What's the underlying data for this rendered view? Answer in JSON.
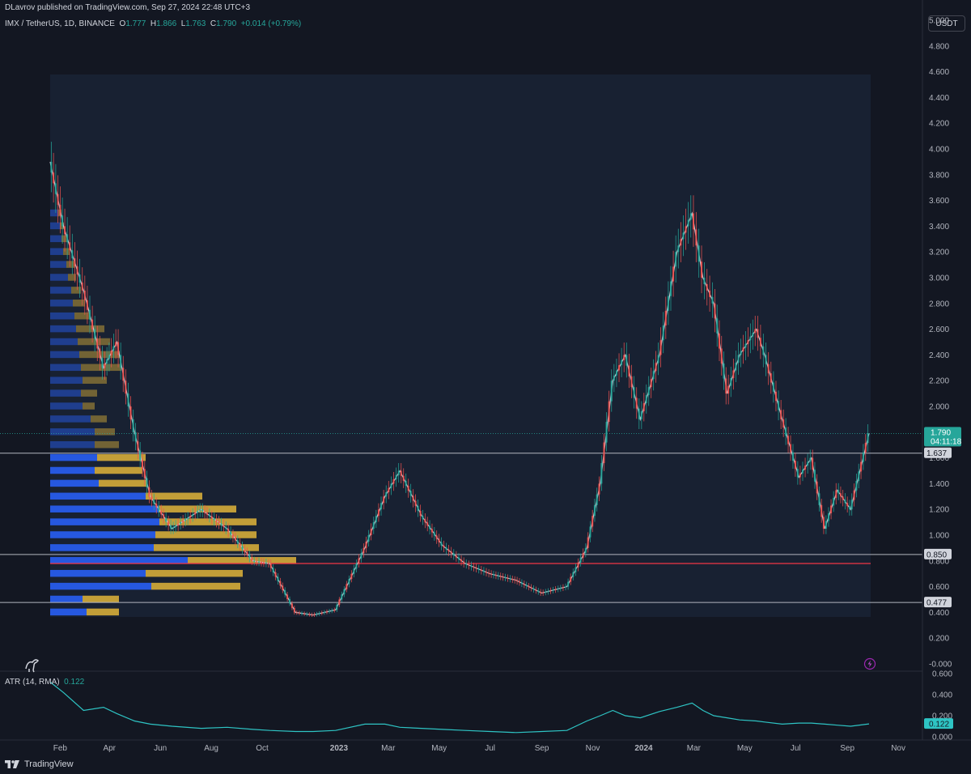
{
  "header": {
    "publisher": "DLavrov published on TradingView.com, Sep 27, 2024 22:48 UTC+3"
  },
  "symbol": {
    "name": "IMX / TetherUS, 1D, BINANCE",
    "o_label": "O",
    "o": "1.777",
    "h_label": "H",
    "h": "1.866",
    "l_label": "L",
    "l": "1.763",
    "c_label": "C",
    "c": "1.790",
    "change": "+0.014 (+0.79%)"
  },
  "currency": "USDT",
  "atr": {
    "label": "ATR (14, RMA)",
    "value": "0.122"
  },
  "footer": {
    "brand": "TradingView"
  },
  "price_tags": {
    "last": "1.790",
    "countdown": "04:11:18"
  },
  "colors": {
    "up": "#26a69a",
    "down": "#ef5350",
    "vp_blue": "#2962ff",
    "vp_gold": "#e0b43a",
    "poc": "#f23645",
    "atr": "#2ec4c4"
  },
  "chart_data": [
    {
      "type": "line",
      "title": "",
      "note_visible": "daily candlestick price of IMX/USDT with volume profile",
      "ylim": [
        0.0,
        5.0
      ],
      "y_ticks": [
        "5.000",
        "4.800",
        "4.600",
        "4.400",
        "4.200",
        "4.000",
        "3.800",
        "3.600",
        "3.400",
        "3.200",
        "3.000",
        "2.800",
        "2.600",
        "2.400",
        "2.200",
        "2.000",
        "1.800",
        "1.600",
        "1.400",
        "1.200",
        "1.000",
        "0.800",
        "0.600",
        "0.400",
        "0.200",
        "-0.000"
      ],
      "x_ticks": [
        "Feb",
        "Apr",
        "Jun",
        "Aug",
        "Oct",
        "2023",
        "Mar",
        "May",
        "Jul",
        "Sep",
        "Nov",
        "2024",
        "Mar",
        "May",
        "Jul",
        "Sep",
        "Nov"
      ],
      "x": [
        "2022-01-20",
        "2022-02-05",
        "2022-03-01",
        "2022-03-25",
        "2022-04-10",
        "2022-05-01",
        "2022-05-20",
        "2022-06-15",
        "2022-07-20",
        "2022-08-20",
        "2022-09-20",
        "2022-10-10",
        "2022-11-10",
        "2022-12-01",
        "2022-12-28",
        "2023-02-01",
        "2023-02-25",
        "2023-03-15",
        "2023-04-10",
        "2023-05-05",
        "2023-06-01",
        "2023-07-01",
        "2023-08-01",
        "2023-09-01",
        "2023-10-01",
        "2023-10-25",
        "2023-11-10",
        "2023-11-25",
        "2023-12-10",
        "2023-12-28",
        "2024-01-20",
        "2024-02-10",
        "2024-02-28",
        "2024-03-12",
        "2024-03-25",
        "2024-04-10",
        "2024-04-25",
        "2024-05-15",
        "2024-05-25",
        "2024-06-15",
        "2024-07-05",
        "2024-07-20",
        "2024-08-05",
        "2024-08-20",
        "2024-09-05",
        "2024-09-27"
      ],
      "series": [
        {
          "values": [
            3.9,
            3.4,
            2.9,
            2.3,
            2.5,
            1.8,
            1.3,
            1.05,
            1.2,
            1.05,
            0.8,
            0.78,
            0.4,
            0.38,
            0.42,
            0.9,
            1.3,
            1.5,
            1.15,
            0.92,
            0.78,
            0.7,
            0.65,
            0.55,
            0.6,
            0.9,
            1.4,
            2.2,
            2.4,
            1.9,
            2.4,
            3.2,
            3.5,
            3.0,
            2.8,
            2.1,
            2.4,
            2.6,
            2.4,
            1.9,
            1.45,
            1.6,
            1.05,
            1.35,
            1.2,
            1.79
          ]
        }
      ],
      "hlines": [
        {
          "label": "1.637",
          "value": 1.637
        },
        {
          "label": "0.850",
          "value": 0.85
        },
        {
          "label": "0.477",
          "value": 0.477
        }
      ],
      "poc": 0.78,
      "volume_profile": {
        "levels": [
          0.4,
          0.5,
          0.6,
          0.7,
          0.8,
          0.9,
          1.0,
          1.1,
          1.2,
          1.3,
          1.4,
          1.5,
          1.6,
          1.7,
          1.8,
          1.9,
          2.0,
          2.1,
          2.2,
          2.3,
          2.4,
          2.5,
          2.6,
          2.7,
          2.8,
          2.9,
          3.0,
          3.1,
          3.2,
          3.3,
          3.4,
          3.5
        ],
        "blue": [
          45,
          40,
          125,
          118,
          170,
          128,
          130,
          135,
          134,
          118,
          60,
          55,
          58,
          55,
          55,
          50,
          40,
          38,
          40,
          38,
          36,
          34,
          32,
          30,
          28,
          26,
          22,
          20,
          16,
          14,
          12,
          10
        ],
        "gold": [
          40,
          45,
          110,
          120,
          134,
          130,
          125,
          120,
          96,
          70,
          60,
          59,
          60,
          30,
          25,
          20,
          15,
          20,
          30,
          50,
          50,
          40,
          35,
          20,
          15,
          12,
          10,
          10,
          8,
          6,
          5,
          4
        ]
      }
    },
    {
      "type": "line",
      "title": "",
      "ylim": [
        0.0,
        0.6
      ],
      "y_ticks": [
        "0.600",
        "0.400",
        "0.200",
        "0.000"
      ],
      "series": [
        {
          "name": "ATR (14, RMA)",
          "values": [
            0.52,
            0.42,
            0.25,
            0.28,
            0.22,
            0.15,
            0.12,
            0.1,
            0.08,
            0.09,
            0.07,
            0.06,
            0.05,
            0.05,
            0.06,
            0.12,
            0.12,
            0.09,
            0.08,
            0.07,
            0.06,
            0.05,
            0.04,
            0.05,
            0.06,
            0.15,
            0.2,
            0.25,
            0.2,
            0.18,
            0.24,
            0.28,
            0.32,
            0.25,
            0.2,
            0.18,
            0.16,
            0.15,
            0.14,
            0.12,
            0.13,
            0.13,
            0.12,
            0.11,
            0.1,
            0.122
          ]
        }
      ]
    }
  ]
}
